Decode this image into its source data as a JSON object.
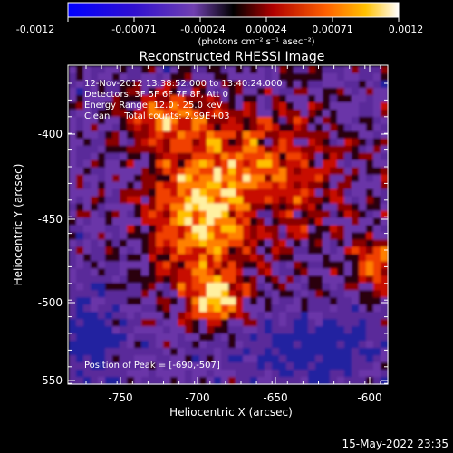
{
  "colorbar": {
    "tick_labels": [
      "-0.0012",
      "-0.00071",
      "-0.00024",
      "0.00024",
      "0.00071",
      "0.0012"
    ],
    "units_label": "(photons cm⁻² s⁻¹ asec⁻²)"
  },
  "title": "Reconstructed RHESSI Image",
  "info": {
    "time": "12-Nov-2012 13:38:52.000 to 13:40:24.000",
    "detectors": "Detectors: 3F 5F 6F 7F 8F, Att 0",
    "energy": "Energy Range: 12.0 - 25.0 keV",
    "clean": "Clean     Total counts: 2.99E+03",
    "peak": "Position of Peak = [-690,-507]"
  },
  "axes": {
    "xlabel": "Heliocentric X (arcsec)",
    "ylabel": "Heliocentric Y (arcsec)",
    "x_ticks": [
      "-750",
      "-700",
      "-650",
      "-600"
    ],
    "y_ticks": [
      "-400",
      "-450",
      "-500",
      "-550"
    ],
    "xlim": [
      -778,
      -590
    ],
    "ylim": [
      -552,
      -372
    ]
  },
  "footer": {
    "timestamp": "15-May-2022 23:35"
  },
  "colors": {
    "background": "#000000",
    "foreground": "#ffffff"
  }
}
